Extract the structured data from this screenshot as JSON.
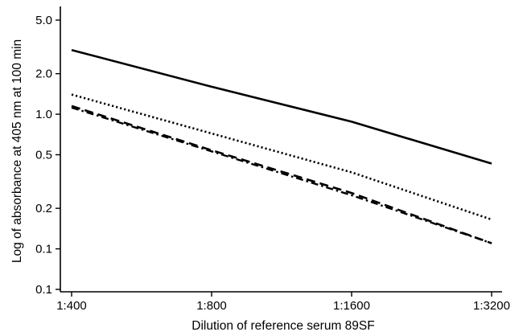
{
  "chart_data": {
    "type": "line",
    "title": "",
    "xlabel": "Dilution of reference serum 89SF",
    "ylabel": "Log of absorbance at 405 nm at 100 min",
    "y_scale": "log",
    "x_ticks": [
      "1:400",
      "1:800",
      "1:1600",
      "1:3200"
    ],
    "y_ticks": [
      {
        "value": 5.0,
        "label": "5.0"
      },
      {
        "value": 2.0,
        "label": "2.0"
      },
      {
        "value": 1.0,
        "label": "1.0"
      },
      {
        "value": 0.5,
        "label": "0.5"
      },
      {
        "value": 0.2,
        "label": "0.2"
      },
      {
        "value": 0.1,
        "label": "0.1"
      },
      {
        "value": 0.05,
        "label": "0.1"
      }
    ],
    "grid": false,
    "legend": "none",
    "series": [
      {
        "style": "solid",
        "values": [
          3.0,
          1.6,
          0.88,
          0.43
        ]
      },
      {
        "style": "dotted",
        "values": [
          1.4,
          0.72,
          0.37,
          0.165
        ]
      },
      {
        "style": "dashed",
        "values": [
          1.15,
          0.54,
          0.26,
          0.11
        ]
      },
      {
        "style": "dash-dot",
        "values": [
          1.12,
          0.53,
          0.25,
          0.11
        ]
      }
    ]
  }
}
